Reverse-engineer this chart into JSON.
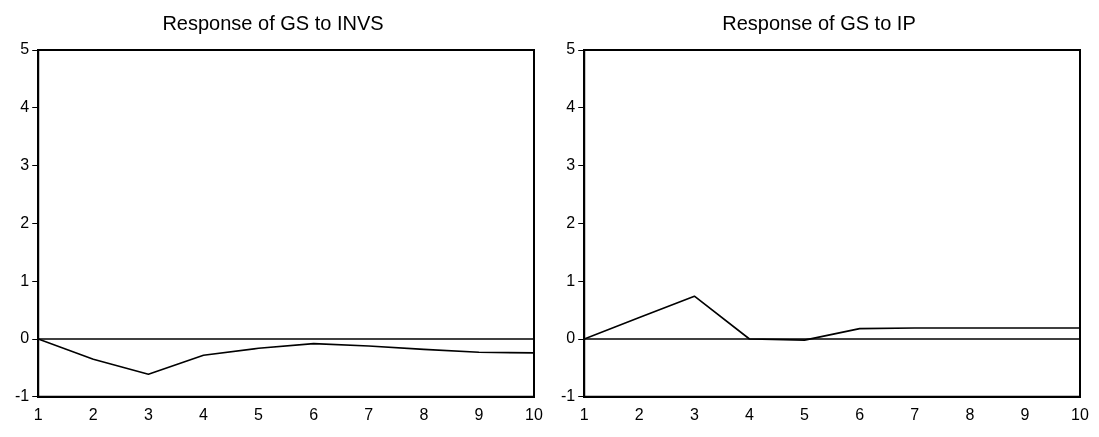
{
  "chart_data": [
    {
      "type": "line",
      "title": "Response of GS to INVS",
      "x": [
        1,
        2,
        3,
        4,
        5,
        6,
        7,
        8,
        9,
        10
      ],
      "series": [
        {
          "color": "#000000",
          "values": [
            0,
            -0.35,
            -0.61,
            -0.28,
            -0.16,
            -0.08,
            -0.12,
            -0.18,
            -0.23,
            -0.24
          ]
        }
      ],
      "xlim": [
        1,
        10
      ],
      "xticks": [
        1,
        2,
        3,
        4,
        5,
        6,
        7,
        8,
        9,
        10
      ],
      "ylim": [
        -1,
        5
      ],
      "yticks": [
        -1,
        0,
        1,
        2,
        3,
        4,
        5
      ],
      "ref_lines": [
        {
          "axis": "y",
          "value": 0,
          "color": "#000000"
        }
      ],
      "grid": false,
      "legend": false,
      "marker": "none",
      "line_style": "solid"
    },
    {
      "type": "line",
      "title": "Response of GS to IP",
      "x": [
        1,
        2,
        3,
        4,
        5,
        6,
        7,
        8,
        9,
        10
      ],
      "series": [
        {
          "color": "#000000",
          "values": [
            0,
            0.37,
            0.74,
            0,
            -0.02,
            0.18,
            0.19,
            0.19,
            0.19,
            0.19
          ]
        }
      ],
      "xlim": [
        1,
        10
      ],
      "xticks": [
        1,
        2,
        3,
        4,
        5,
        6,
        7,
        8,
        9,
        10
      ],
      "ylim": [
        -1,
        5
      ],
      "yticks": [
        -1,
        0,
        1,
        2,
        3,
        4,
        5
      ],
      "ref_lines": [
        {
          "axis": "y",
          "value": 0,
          "color": "#000000"
        }
      ],
      "grid": false,
      "legend": false,
      "marker": "none",
      "line_style": "solid"
    }
  ]
}
